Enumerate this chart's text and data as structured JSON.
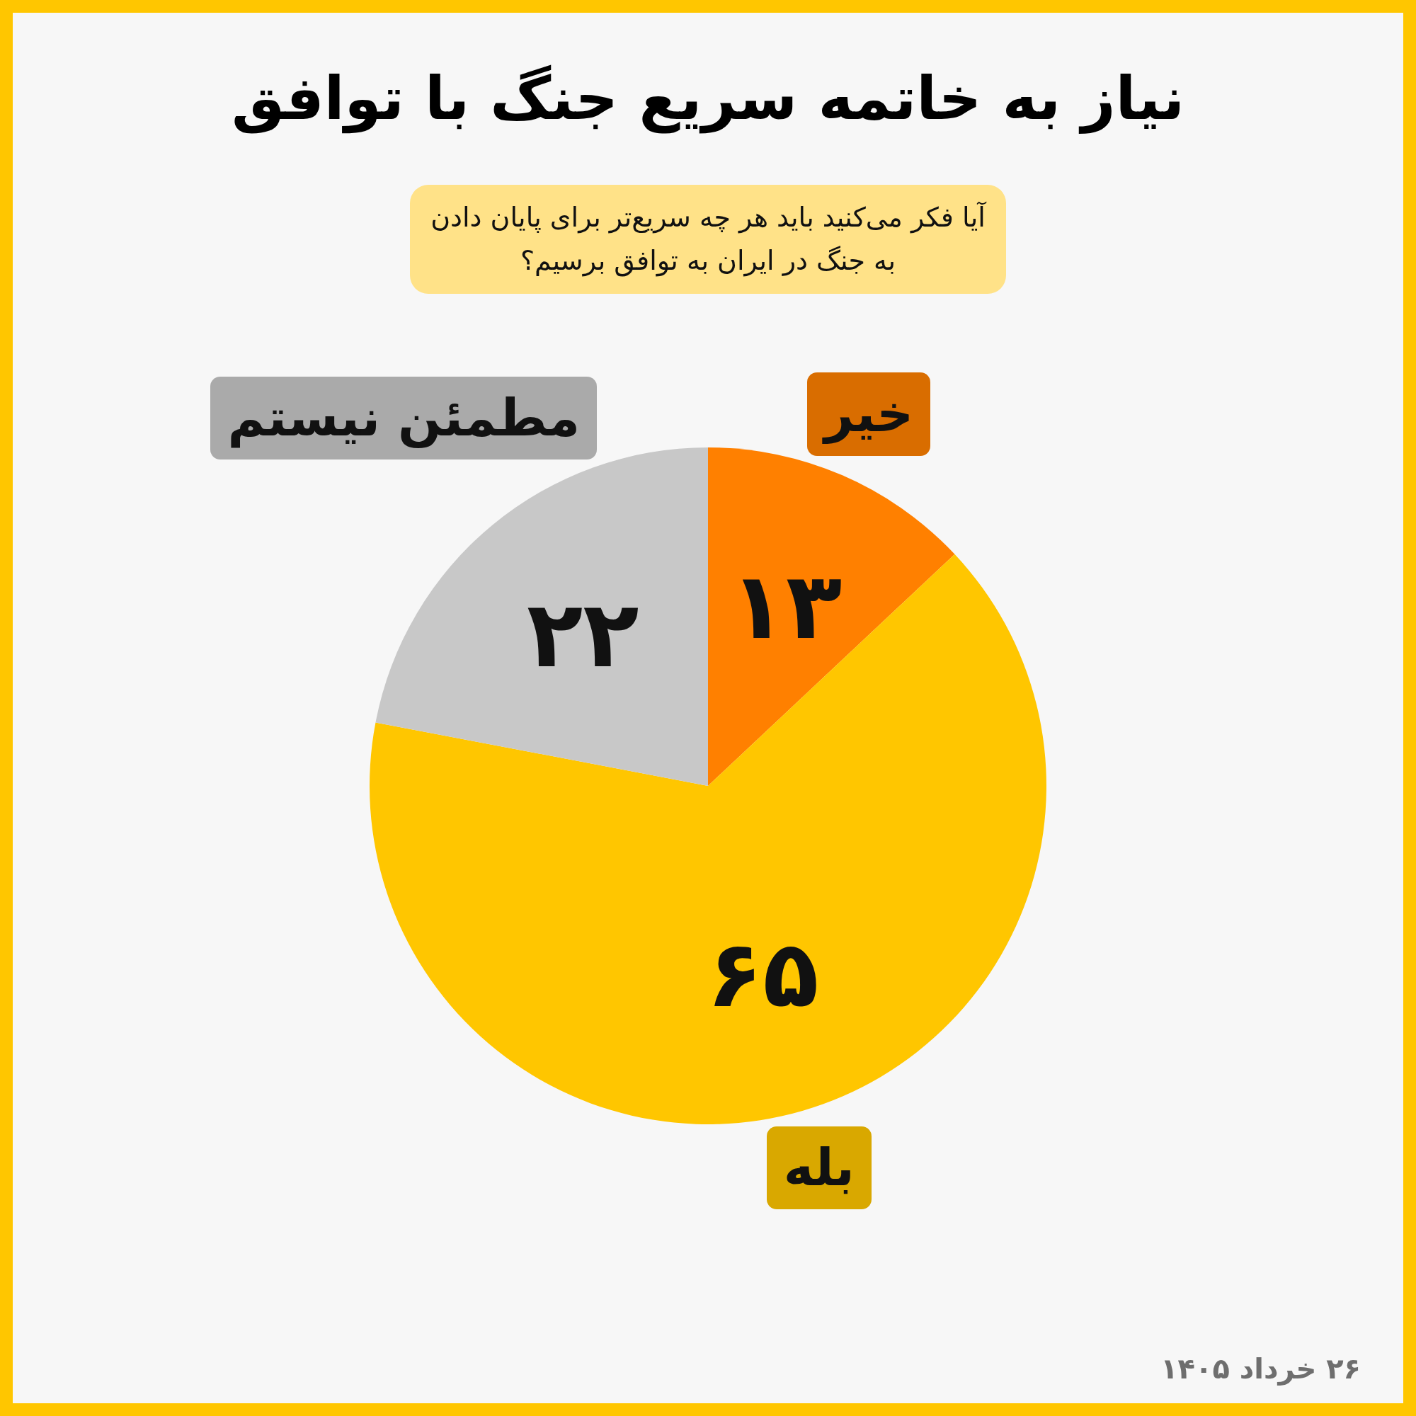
{
  "chart_data": {
    "type": "pie",
    "title": "نیاز به خاتمه سریع جنگ با توافق",
    "subtitle": "آیا فکر می‌کنید باید هر چه سریع‌تر برای پایان دادن به جنگ در ایران به توافق برسیم؟",
    "categories": [
      "خیر",
      "بله",
      "مطمئن نیستم"
    ],
    "values": [
      13,
      65,
      22
    ],
    "colors": [
      "#ff8000",
      "#ffc600",
      "#c8c8c8"
    ],
    "value_labels": [
      "۱۳",
      "۶۵",
      "۲۲"
    ],
    "annotations": [
      "۲۶ خرداد ۱۴۰۵"
    ]
  }
}
